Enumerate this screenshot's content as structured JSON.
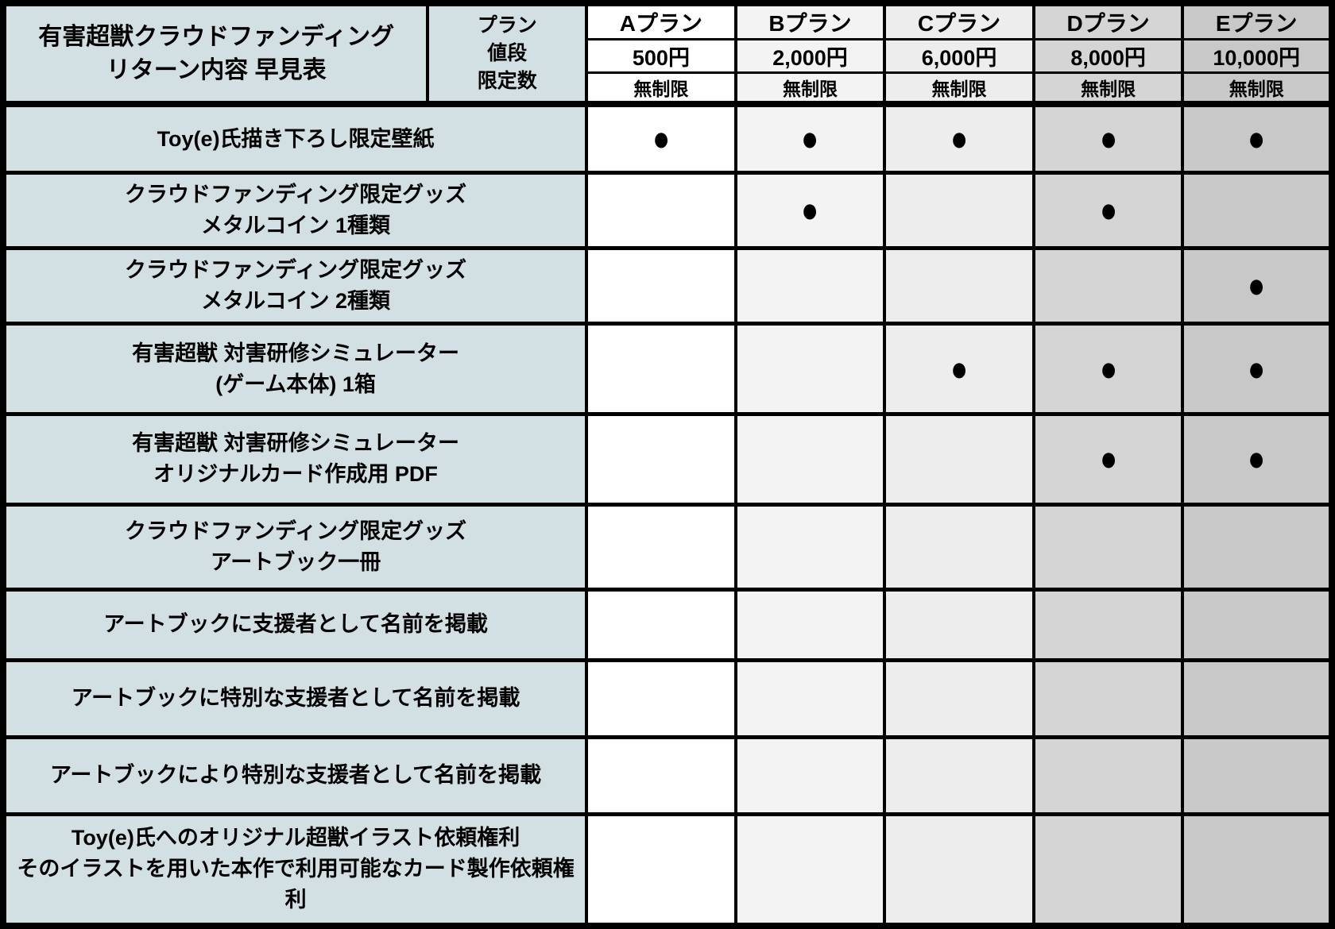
{
  "title": "有害超獣クラウドファンディング\nリターン内容 早見表",
  "header": {
    "labels_joined": "プラン\n値段\n限定数",
    "labels": [
      "プラン",
      "値段",
      "限定数"
    ]
  },
  "plans": [
    {
      "name": "Aプラン",
      "price": "500円",
      "limit": "無制限",
      "color": "#ffffff"
    },
    {
      "name": "Bプラン",
      "price": "2,000円",
      "limit": "無制限",
      "color": "#f3f3f3"
    },
    {
      "name": "Cプラン",
      "price": "6,000円",
      "limit": "無制限",
      "color": "#ededed"
    },
    {
      "name": "Dプラン",
      "price": "8,000円",
      "limit": "無制限",
      "color": "#d5d5d5"
    },
    {
      "name": "Eプラン",
      "price": "10,000円",
      "limit": "無制限",
      "color": "#c8c8c8"
    }
  ],
  "dot_glyph": "●",
  "rows": [
    {
      "label": "Toy(e)氏描き下ろし限定壁紙",
      "marks": [
        true,
        true,
        true,
        true,
        true
      ]
    },
    {
      "label": "クラウドファンディング限定グッズ\nメタルコイン 1種類",
      "marks": [
        false,
        true,
        false,
        true,
        false
      ]
    },
    {
      "label": "クラウドファンディング限定グッズ\nメタルコイン 2種類",
      "marks": [
        false,
        false,
        false,
        false,
        true
      ]
    },
    {
      "label": "有害超獣 対害研修シミュレーター\n(ゲーム本体) 1箱",
      "marks": [
        false,
        false,
        true,
        true,
        true
      ]
    },
    {
      "label": "有害超獣 対害研修シミュレーター\nオリジナルカード作成用 PDF",
      "marks": [
        false,
        false,
        false,
        true,
        true
      ]
    },
    {
      "label": "クラウドファンディング限定グッズ\nアートブック一冊",
      "marks": [
        false,
        false,
        false,
        false,
        false
      ]
    },
    {
      "label": "アートブックに支援者として名前を掲載",
      "marks": [
        false,
        false,
        false,
        false,
        false
      ]
    },
    {
      "label": "アートブックに特別な支援者として名前を掲載",
      "marks": [
        false,
        false,
        false,
        false,
        false
      ]
    },
    {
      "label": "アートブックにより特別な支援者として名前を掲載",
      "marks": [
        false,
        false,
        false,
        false,
        false
      ]
    },
    {
      "label": "Toy(e)氏へのオリジナル超獣イラスト依頼権利\nそのイラストを用いた本作で利用可能なカード製作依頼権利",
      "marks": [
        false,
        false,
        false,
        false,
        false
      ]
    }
  ],
  "colors": {
    "label_bg": "#d3e0e3",
    "border": "#000000",
    "text": "#000000"
  },
  "chart_data": {
    "type": "table",
    "title": "有害超獣クラウドファンディング リターン内容 早見表",
    "columns": [
      "Aプラン",
      "Bプラン",
      "Cプラン",
      "Dプラン",
      "Eプラン"
    ],
    "prices": [
      "500円",
      "2,000円",
      "6,000円",
      "8,000円",
      "10,000円"
    ],
    "limits": [
      "無制限",
      "無制限",
      "無制限",
      "無制限",
      "無制限"
    ],
    "row_labels": [
      "Toy(e)氏描き下ろし限定壁紙",
      "クラウドファンディング限定グッズ メタルコイン 1種類",
      "クラウドファンディング限定グッズ メタルコイン 2種類",
      "有害超獣 対害研修シミュレーター (ゲーム本体) 1箱",
      "有害超獣 対害研修シミュレーター オリジナルカード作成用 PDF",
      "クラウドファンディング限定グッズ アートブック一冊",
      "アートブックに支援者として名前を掲載",
      "アートブックに特別な支援者として名前を掲載",
      "アートブックにより特別な支援者として名前を掲載",
      "Toy(e)氏へのオリジナル超獣イラスト依頼権利 そのイラストを用いた本作で利用可能なカード製作依頼権利"
    ],
    "included": [
      [
        1,
        1,
        1,
        1,
        1
      ],
      [
        0,
        1,
        0,
        1,
        0
      ],
      [
        0,
        0,
        0,
        0,
        1
      ],
      [
        0,
        0,
        1,
        1,
        1
      ],
      [
        0,
        0,
        0,
        1,
        1
      ],
      [
        0,
        0,
        0,
        0,
        0
      ],
      [
        0,
        0,
        0,
        0,
        0
      ],
      [
        0,
        0,
        0,
        0,
        0
      ],
      [
        0,
        0,
        0,
        0,
        0
      ],
      [
        0,
        0,
        0,
        0,
        0
      ]
    ]
  }
}
